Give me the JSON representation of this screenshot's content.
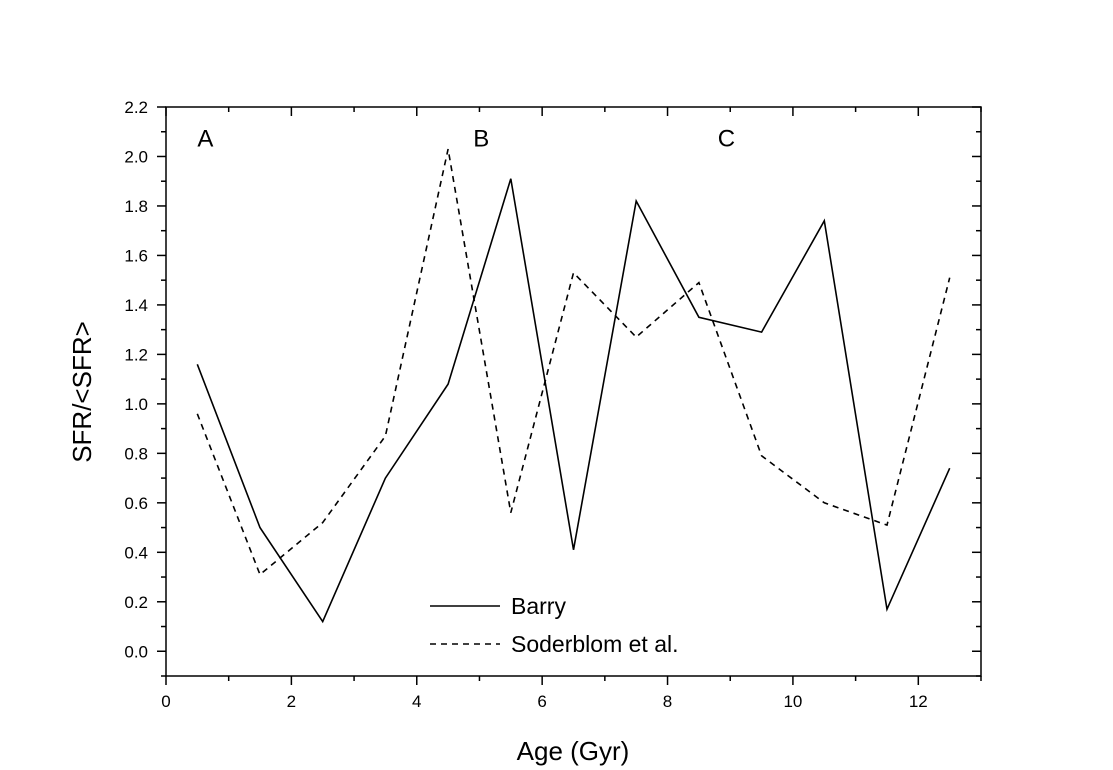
{
  "chart_data": {
    "type": "line",
    "xlabel": "Age (Gyr)",
    "ylabel": "SFR/<SFR>",
    "xlim": [
      0,
      13
    ],
    "ylim": [
      -0.1,
      2.2
    ],
    "xticks": [
      "0",
      "2",
      "4",
      "6",
      "8",
      "10",
      "12"
    ],
    "yticks": [
      "0.0",
      "0.2",
      "0.4",
      "0.6",
      "0.8",
      "1.0",
      "1.2",
      "1.4",
      "1.6",
      "1.8",
      "2.0",
      "2.2"
    ],
    "region_labels": [
      {
        "text": "A",
        "x": 0.5,
        "y": 2.04
      },
      {
        "text": "B",
        "x": 4.9,
        "y": 2.04
      },
      {
        "text": "C",
        "x": 8.8,
        "y": 2.04
      }
    ],
    "legend_position": "bottom-center",
    "grid": false,
    "series": [
      {
        "name": "Barry",
        "style": "solid",
        "color": "#000000",
        "x": [
          0.5,
          1.5,
          2.5,
          3.5,
          4.5,
          5.5,
          6.5,
          7.5,
          8.5,
          9.5,
          10.5,
          11.5,
          12.5
        ],
        "y": [
          1.16,
          0.5,
          0.12,
          0.7,
          1.08,
          1.91,
          0.41,
          1.82,
          1.35,
          1.29,
          1.74,
          0.17,
          0.74
        ]
      },
      {
        "name": "Soderblom et al.",
        "style": "dashed",
        "color": "#000000",
        "x": [
          0.5,
          1.5,
          2.5,
          3.5,
          4.5,
          5.5,
          6.5,
          7.5,
          8.5,
          9.5,
          10.5,
          11.5,
          12.5
        ],
        "y": [
          0.96,
          0.31,
          0.52,
          0.87,
          2.03,
          0.56,
          1.53,
          1.27,
          1.49,
          0.79,
          0.6,
          0.51,
          1.51
        ]
      }
    ]
  }
}
